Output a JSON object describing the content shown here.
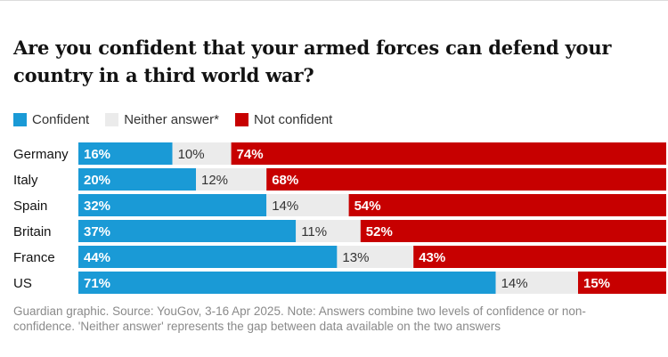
{
  "chart_data": {
    "type": "bar",
    "orientation": "horizontal",
    "stacked": true,
    "title": "Are you confident that your armed forces can defend your country in a third world war?",
    "categories": [
      "Germany",
      "Italy",
      "Spain",
      "Britain",
      "France",
      "US"
    ],
    "series": [
      {
        "name": "Confident",
        "key": "confident",
        "color": "#1a9ad6",
        "values": [
          16,
          20,
          32,
          37,
          44,
          71
        ]
      },
      {
        "name": "Neither answer*",
        "key": "neither",
        "color": "#ebebeb",
        "values": [
          10,
          12,
          14,
          11,
          13,
          14
        ]
      },
      {
        "name": "Not confident",
        "key": "not",
        "color": "#c70000",
        "values": [
          74,
          68,
          54,
          52,
          43,
          15
        ]
      }
    ],
    "value_suffix": "%",
    "xlim": [
      0,
      100
    ],
    "legend_position": "top-left",
    "source": "Guardian graphic. Source: YouGov, 3-16 Apr 2025. Note: Answers combine two levels of confidence or non-confidence. 'Neither answer' represents the gap between data available on the two answers"
  }
}
